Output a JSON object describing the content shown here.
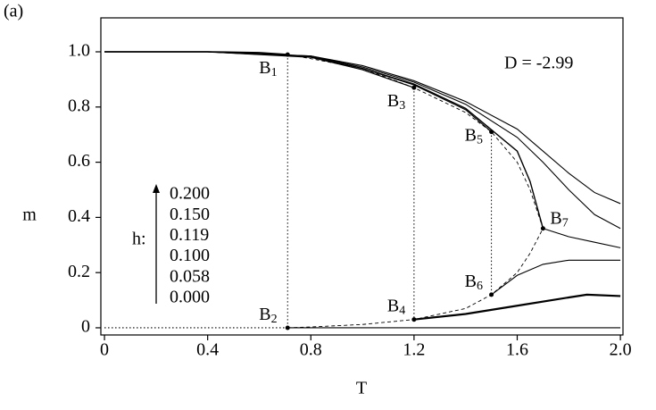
{
  "chart_data": {
    "type": "line",
    "panel_label": "(a)",
    "annotation": "D = -2.99",
    "xlabel": "T",
    "ylabel": "m",
    "xlim": [
      -0.014,
      2.01
    ],
    "ylim": [
      -0.026,
      1.123
    ],
    "xticks": [
      0,
      0.4,
      0.8,
      1.2,
      1.6,
      {
        "value": 2,
        "label": "2.0"
      }
    ],
    "yticks": [
      0,
      0.2,
      0.4,
      0.6,
      0.8,
      {
        "value": 1,
        "label": "1.0"
      }
    ],
    "color": "#000000",
    "legend": {
      "title": "h:",
      "entries": [
        "0.200",
        "0.150",
        "0.119",
        "0.100",
        "0.058",
        "0.000"
      ]
    },
    "series": [
      {
        "style": "solid",
        "width": 1.1,
        "x": [
          0,
          0.4,
          0.8,
          1.0,
          1.2,
          1.4,
          1.6,
          1.7,
          1.8,
          1.9,
          2.0
        ],
        "values": [
          1,
          1,
          0.985,
          0.95,
          0.895,
          0.82,
          0.72,
          0.64,
          0.56,
          0.49,
          0.45
        ]
      },
      {
        "style": "solid",
        "width": 1.1,
        "x": [
          0,
          0.4,
          0.8,
          1.0,
          1.2,
          1.4,
          1.6,
          1.7,
          1.8,
          1.9,
          2.0
        ],
        "values": [
          1,
          1,
          0.985,
          0.945,
          0.89,
          0.81,
          0.69,
          0.6,
          0.5,
          0.41,
          0.36
        ]
      },
      {
        "style": "solid",
        "width": 1.4,
        "x": [
          0,
          0.4,
          0.8,
          1.0,
          1.2,
          1.4,
          1.6,
          1.65,
          1.7
        ],
        "values": [
          1,
          1,
          0.983,
          0.94,
          0.883,
          0.795,
          0.64,
          0.53,
          0.36
        ]
      },
      {
        "style": "solid",
        "width": 1.1,
        "x": [
          1.7,
          1.8,
          1.9,
          2.0
        ],
        "values": [
          0.36,
          0.33,
          0.31,
          0.29
        ]
      },
      {
        "style": "solid",
        "width": 1.1,
        "x": [
          0,
          0.4,
          0.8,
          1.0,
          1.2,
          1.4,
          1.5
        ],
        "values": [
          1,
          1,
          0.982,
          0.94,
          0.88,
          0.79,
          0.71
        ]
      },
      {
        "style": "solid",
        "width": 1.1,
        "x": [
          1.5,
          1.6,
          1.7,
          1.8,
          2.0
        ],
        "values": [
          0.12,
          0.19,
          0.23,
          0.245,
          0.245
        ]
      },
      {
        "style": "solid",
        "width": 1.1,
        "x": [
          0,
          0.4,
          0.8,
          1.0,
          1.2
        ],
        "values": [
          1,
          1,
          0.98,
          0.935,
          0.87
        ]
      },
      {
        "style": "solid",
        "width": 2.2,
        "x": [
          1.2,
          1.4,
          1.6,
          1.8,
          1.87,
          2.0
        ],
        "values": [
          0.03,
          0.05,
          0.08,
          0.11,
          0.12,
          0.115
        ]
      },
      {
        "style": "solid",
        "width": 1.6,
        "x": [
          0,
          0.4,
          0.6,
          0.71
        ],
        "values": [
          1,
          1,
          0.997,
          0.99
        ]
      },
      {
        "style": "solid",
        "width": 1.1,
        "x": [
          0.71,
          2.0
        ],
        "values": [
          0,
          0
        ]
      },
      {
        "style": "dotted",
        "width": 1.1,
        "x": [
          0,
          0.71
        ],
        "values": [
          0,
          0
        ]
      },
      {
        "style": "dashed",
        "width": 0.9,
        "x": [
          0.71,
          0.8,
          1.0,
          1.2,
          1.4,
          1.5,
          1.6,
          1.65,
          1.7,
          1.65,
          1.6,
          1.5,
          1.4,
          1.2,
          1.0,
          0.8,
          0.71
        ],
        "values": [
          0,
          0.003,
          0.012,
          0.03,
          0.07,
          0.12,
          0.2,
          0.27,
          0.36,
          0.5,
          0.6,
          0.71,
          0.78,
          0.87,
          0.94,
          0.975,
          0.99
        ]
      }
    ],
    "points": [
      {
        "label": "B",
        "sub": "1",
        "x": 0.71,
        "y": 0.99
      },
      {
        "label": "B",
        "sub": "2",
        "x": 0.71,
        "y": 0
      },
      {
        "label": "B",
        "sub": "3",
        "x": 1.2,
        "y": 0.87
      },
      {
        "label": "B",
        "sub": "4",
        "x": 1.2,
        "y": 0.03
      },
      {
        "label": "B",
        "sub": "5",
        "x": 1.5,
        "y": 0.71
      },
      {
        "label": "B",
        "sub": "6",
        "x": 1.5,
        "y": 0.12
      },
      {
        "label": "B",
        "sub": "7",
        "x": 1.7,
        "y": 0.36
      }
    ]
  }
}
